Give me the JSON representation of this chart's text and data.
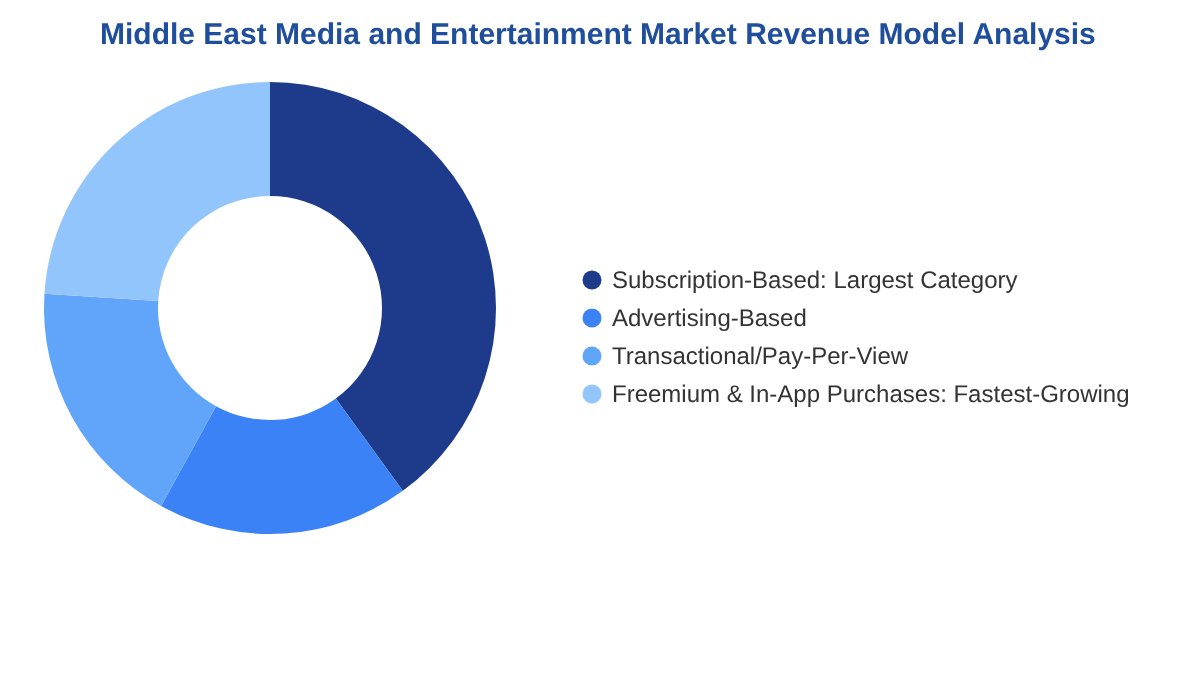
{
  "chart_data": {
    "type": "donut",
    "title": "Middle East Media and Entertainment Market Revenue Model Analysis",
    "categories": [
      "Subscription-Based:  Largest Category",
      "Advertising-Based",
      "Transactional/Pay-Per-View",
      "Freemium & In-App Purchases:  Fastest-Growing"
    ],
    "values": [
      40,
      18,
      18,
      24
    ],
    "colors": [
      "#1e3a8a",
      "#3b82f6",
      "#60a5fa",
      "#93c5fd"
    ],
    "legend": "right"
  }
}
